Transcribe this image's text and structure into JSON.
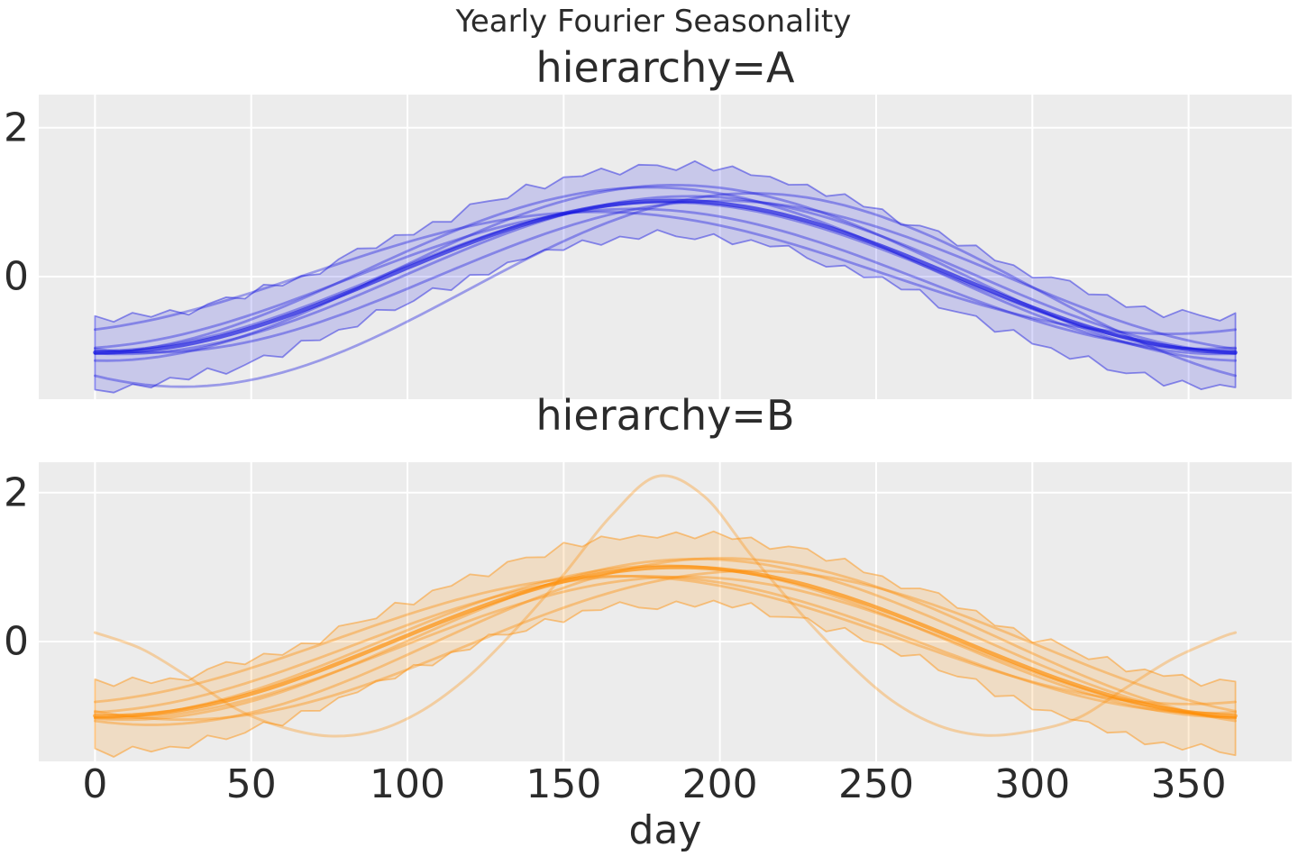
{
  "figure": {
    "background": "#ffffff",
    "panel_background": "#ececec",
    "grid_color": "#ffffff",
    "text_color": "#2b2b2b"
  },
  "chart_data": {
    "type": "line",
    "title": "Yearly Fourier Seasonality",
    "xlabel": "day",
    "ylabel": "",
    "grid": true,
    "legend": "none",
    "x_ticks": [
      0,
      50,
      100,
      150,
      200,
      250,
      300,
      350
    ],
    "x_domain_days": [
      0,
      365
    ],
    "xlim": [
      -18,
      383
    ],
    "member_format": "[amplitude, phase_days, offset]",
    "curve_model": "value = offset - amplitude * cos(2*PI*(day - phase_days)/365)",
    "panels": [
      {
        "id": "A",
        "title": "hierarchy=A",
        "color": "#1515e0",
        "ylim": [
          -1.65,
          2.44
        ],
        "y_ticks": [
          2,
          0
        ],
        "members": [
          [
            1.0,
            0,
            0.0
          ],
          [
            1.06,
            8,
            0.02
          ],
          [
            0.94,
            -10,
            -0.03
          ],
          [
            1.18,
            3,
            0.05
          ],
          [
            1.02,
            18,
            0.0
          ],
          [
            0.82,
            -22,
            0.05
          ],
          [
            1.3,
            28,
            -0.18
          ],
          [
            1.12,
            -5,
            0.08
          ]
        ],
        "mean": [
          1.02,
          2,
          0.0
        ],
        "band": {
          "center": [
            1.02,
            2,
            0.0
          ],
          "halfwidth": 0.46,
          "step_days": 6
        }
      },
      {
        "id": "B",
        "title": "hierarchy=B",
        "color": "#ff8c00",
        "ylim": [
          -1.61,
          2.41
        ],
        "y_ticks": [
          2,
          0
        ],
        "members": [
          [
            1.02,
            0,
            0.0
          ],
          [
            1.08,
            10,
            0.03
          ],
          [
            0.92,
            -8,
            -0.04
          ],
          [
            1.12,
            18,
            0.0
          ],
          [
            0.86,
            -15,
            0.02
          ],
          [
            1.0,
            28,
            -0.05
          ],
          [
            0.95,
            6,
            -0.08
          ]
        ],
        "mean": [
          1.0,
          4,
          0.0
        ],
        "band": {
          "center": [
            1.0,
            4,
            -0.02
          ],
          "halfwidth": 0.46,
          "step_days": 6
        },
        "outlier": {
          "days": [
            0,
            15,
            30,
            45,
            60,
            75,
            90,
            105,
            120,
            135,
            150,
            165,
            180,
            195,
            210,
            225,
            240,
            255,
            270,
            285,
            300,
            315,
            330,
            345,
            360,
            365
          ],
          "values": [
            0.12,
            -0.1,
            -0.48,
            -0.9,
            -1.15,
            -1.27,
            -1.2,
            -0.92,
            -0.45,
            0.18,
            0.9,
            1.68,
            2.22,
            1.95,
            1.16,
            0.42,
            -0.24,
            -0.79,
            -1.13,
            -1.26,
            -1.2,
            -1.02,
            -0.62,
            -0.23,
            0.05,
            0.12
          ]
        }
      }
    ],
    "band_edge_jitter": [
      0.03,
      -0.05,
      0.06,
      -0.02,
      0.04,
      -0.07,
      0.02,
      0.05,
      -0.04,
      0.07,
      -0.03,
      0.01,
      -0.06,
      0.04,
      0.08,
      -0.02,
      0.05,
      -0.05,
      0.02,
      -0.08,
      0.06,
      0.01,
      -0.04,
      0.07,
      -0.06,
      0.03,
      -0.01,
      0.05,
      -0.07,
      0.04,
      0.02,
      -0.05,
      0.08,
      -0.03,
      0.06,
      -0.02,
      0.01,
      -0.04
    ]
  }
}
